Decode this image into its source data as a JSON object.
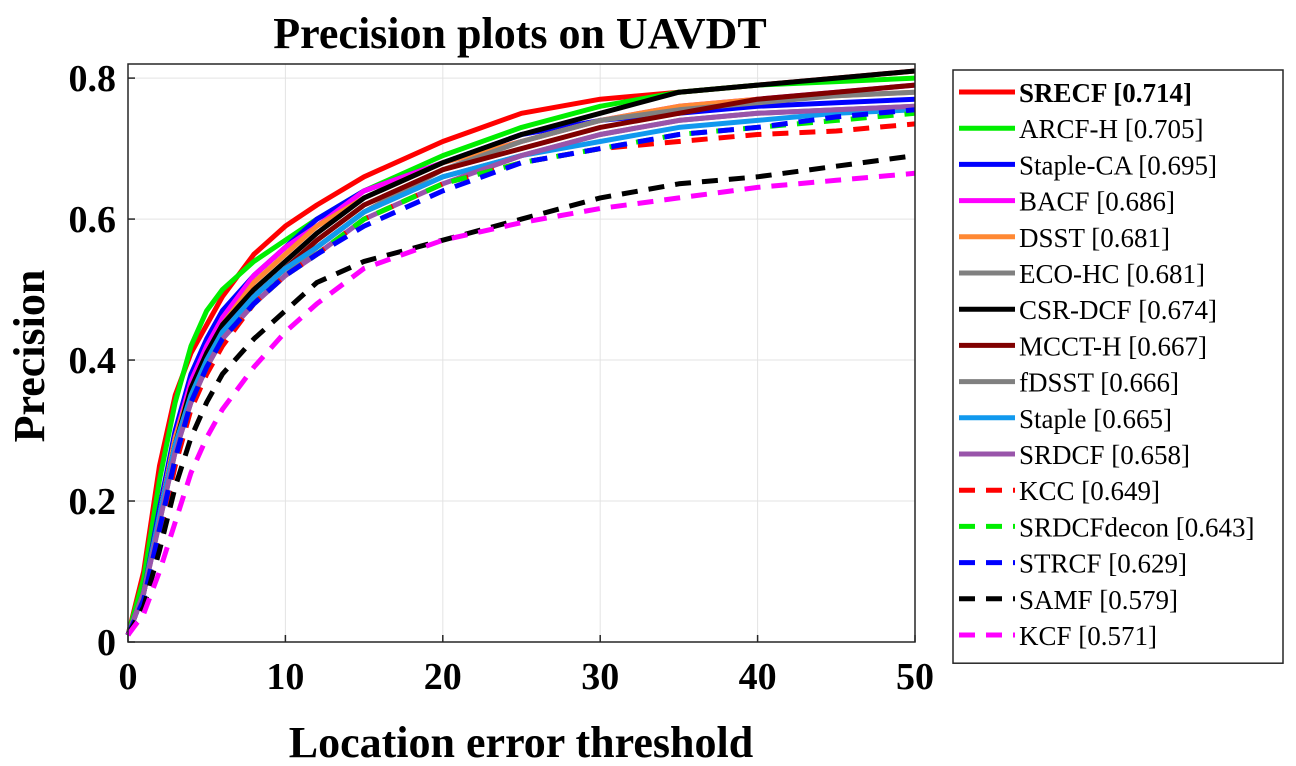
{
  "chart_data": {
    "type": "line",
    "title": "Precision plots on UAVDT",
    "xlabel": "Location error threshold",
    "ylabel": "Precision",
    "xlim": [
      0,
      50
    ],
    "ylim": [
      0,
      0.82
    ],
    "xticks": [
      "0",
      "10",
      "20",
      "30",
      "40",
      "50"
    ],
    "yticks": [
      "0",
      "0.2",
      "0.4",
      "0.6",
      "0.8"
    ],
    "grid": true,
    "legend_position": "right-outside",
    "x": [
      0,
      1,
      2,
      3,
      4,
      5,
      6,
      8,
      10,
      12,
      15,
      20,
      25,
      30,
      35,
      40,
      45,
      50
    ],
    "series": [
      {
        "name": "SRECF [0.714]",
        "color": "#ff0000",
        "dash": false,
        "bold": true,
        "values": [
          0.01,
          0.1,
          0.25,
          0.35,
          0.41,
          0.45,
          0.49,
          0.55,
          0.59,
          0.62,
          0.66,
          0.71,
          0.75,
          0.77,
          0.78,
          0.79,
          0.8,
          0.81
        ]
      },
      {
        "name": "ARCF-H [0.705]",
        "color": "#00ee00",
        "dash": false,
        "values": [
          0.01,
          0.09,
          0.23,
          0.34,
          0.42,
          0.47,
          0.5,
          0.54,
          0.57,
          0.6,
          0.64,
          0.69,
          0.73,
          0.76,
          0.78,
          0.79,
          0.795,
          0.8
        ]
      },
      {
        "name": "Staple-CA [0.695]",
        "color": "#0000ff",
        "dash": false,
        "values": [
          0.01,
          0.07,
          0.19,
          0.3,
          0.38,
          0.43,
          0.47,
          0.52,
          0.56,
          0.6,
          0.64,
          0.68,
          0.72,
          0.74,
          0.75,
          0.76,
          0.765,
          0.77
        ]
      },
      {
        "name": "BACF [0.686]",
        "color": "#ff00ff",
        "dash": false,
        "values": [
          0.01,
          0.07,
          0.18,
          0.29,
          0.37,
          0.42,
          0.46,
          0.52,
          0.56,
          0.59,
          0.64,
          0.68,
          0.71,
          0.74,
          0.76,
          0.77,
          0.78,
          0.79
        ]
      },
      {
        "name": "DSST [0.681]",
        "color": "#ff8833",
        "dash": false,
        "values": [
          0.01,
          0.07,
          0.18,
          0.29,
          0.36,
          0.41,
          0.45,
          0.51,
          0.55,
          0.59,
          0.63,
          0.68,
          0.71,
          0.74,
          0.76,
          0.77,
          0.775,
          0.78
        ]
      },
      {
        "name": "ECO-HC [0.681]",
        "color": "#808080",
        "dash": false,
        "values": [
          0.01,
          0.07,
          0.18,
          0.28,
          0.35,
          0.4,
          0.44,
          0.49,
          0.53,
          0.56,
          0.61,
          0.67,
          0.71,
          0.74,
          0.755,
          0.765,
          0.775,
          0.78
        ]
      },
      {
        "name": "CSR-DCF [0.674]",
        "color": "#000000",
        "dash": false,
        "values": [
          0.01,
          0.07,
          0.18,
          0.28,
          0.36,
          0.41,
          0.45,
          0.5,
          0.54,
          0.58,
          0.63,
          0.68,
          0.72,
          0.75,
          0.78,
          0.79,
          0.8,
          0.81
        ]
      },
      {
        "name": "MCCT-H [0.667]",
        "color": "#800000",
        "dash": false,
        "values": [
          0.01,
          0.07,
          0.18,
          0.28,
          0.35,
          0.4,
          0.44,
          0.49,
          0.53,
          0.57,
          0.62,
          0.67,
          0.7,
          0.73,
          0.75,
          0.77,
          0.78,
          0.79
        ]
      },
      {
        "name": "fDSST [0.666]",
        "color": "#808080",
        "dash": false,
        "values": [
          0.01,
          0.07,
          0.17,
          0.27,
          0.34,
          0.39,
          0.43,
          0.48,
          0.52,
          0.56,
          0.61,
          0.66,
          0.69,
          0.72,
          0.74,
          0.75,
          0.755,
          0.76
        ]
      },
      {
        "name": "Staple [0.665]",
        "color": "#1199ee",
        "dash": false,
        "values": [
          0.01,
          0.07,
          0.18,
          0.28,
          0.35,
          0.4,
          0.44,
          0.49,
          0.53,
          0.56,
          0.61,
          0.66,
          0.69,
          0.71,
          0.73,
          0.74,
          0.75,
          0.755
        ]
      },
      {
        "name": "SRDCF [0.658]",
        "color": "#9955aa",
        "dash": false,
        "values": [
          0.01,
          0.07,
          0.17,
          0.27,
          0.34,
          0.39,
          0.43,
          0.48,
          0.52,
          0.55,
          0.6,
          0.65,
          0.69,
          0.72,
          0.74,
          0.75,
          0.755,
          0.76
        ]
      },
      {
        "name": "KCC [0.649]",
        "color": "#ff0000",
        "dash": true,
        "values": [
          0.01,
          0.06,
          0.15,
          0.25,
          0.33,
          0.38,
          0.42,
          0.48,
          0.52,
          0.55,
          0.6,
          0.65,
          0.68,
          0.7,
          0.71,
          0.72,
          0.725,
          0.735
        ]
      },
      {
        "name": "SRDCFdecon [0.643]",
        "color": "#00ee00",
        "dash": true,
        "values": [
          0.01,
          0.06,
          0.16,
          0.26,
          0.34,
          0.39,
          0.43,
          0.48,
          0.52,
          0.55,
          0.6,
          0.65,
          0.68,
          0.7,
          0.72,
          0.73,
          0.74,
          0.75
        ]
      },
      {
        "name": "STRCF [0.629]",
        "color": "#0000ff",
        "dash": true,
        "values": [
          0.01,
          0.06,
          0.16,
          0.26,
          0.34,
          0.39,
          0.43,
          0.48,
          0.52,
          0.55,
          0.59,
          0.64,
          0.68,
          0.7,
          0.72,
          0.73,
          0.745,
          0.755
        ]
      },
      {
        "name": "SAMF [0.579]",
        "color": "#000000",
        "dash": true,
        "values": [
          0.01,
          0.05,
          0.13,
          0.22,
          0.29,
          0.34,
          0.38,
          0.43,
          0.47,
          0.51,
          0.54,
          0.57,
          0.6,
          0.63,
          0.65,
          0.66,
          0.675,
          0.69
        ]
      },
      {
        "name": "KCF [0.571]",
        "color": "#ff00ff",
        "dash": true,
        "values": [
          0.01,
          0.04,
          0.1,
          0.17,
          0.24,
          0.29,
          0.33,
          0.39,
          0.44,
          0.48,
          0.53,
          0.57,
          0.595,
          0.615,
          0.63,
          0.645,
          0.655,
          0.665
        ]
      }
    ]
  }
}
